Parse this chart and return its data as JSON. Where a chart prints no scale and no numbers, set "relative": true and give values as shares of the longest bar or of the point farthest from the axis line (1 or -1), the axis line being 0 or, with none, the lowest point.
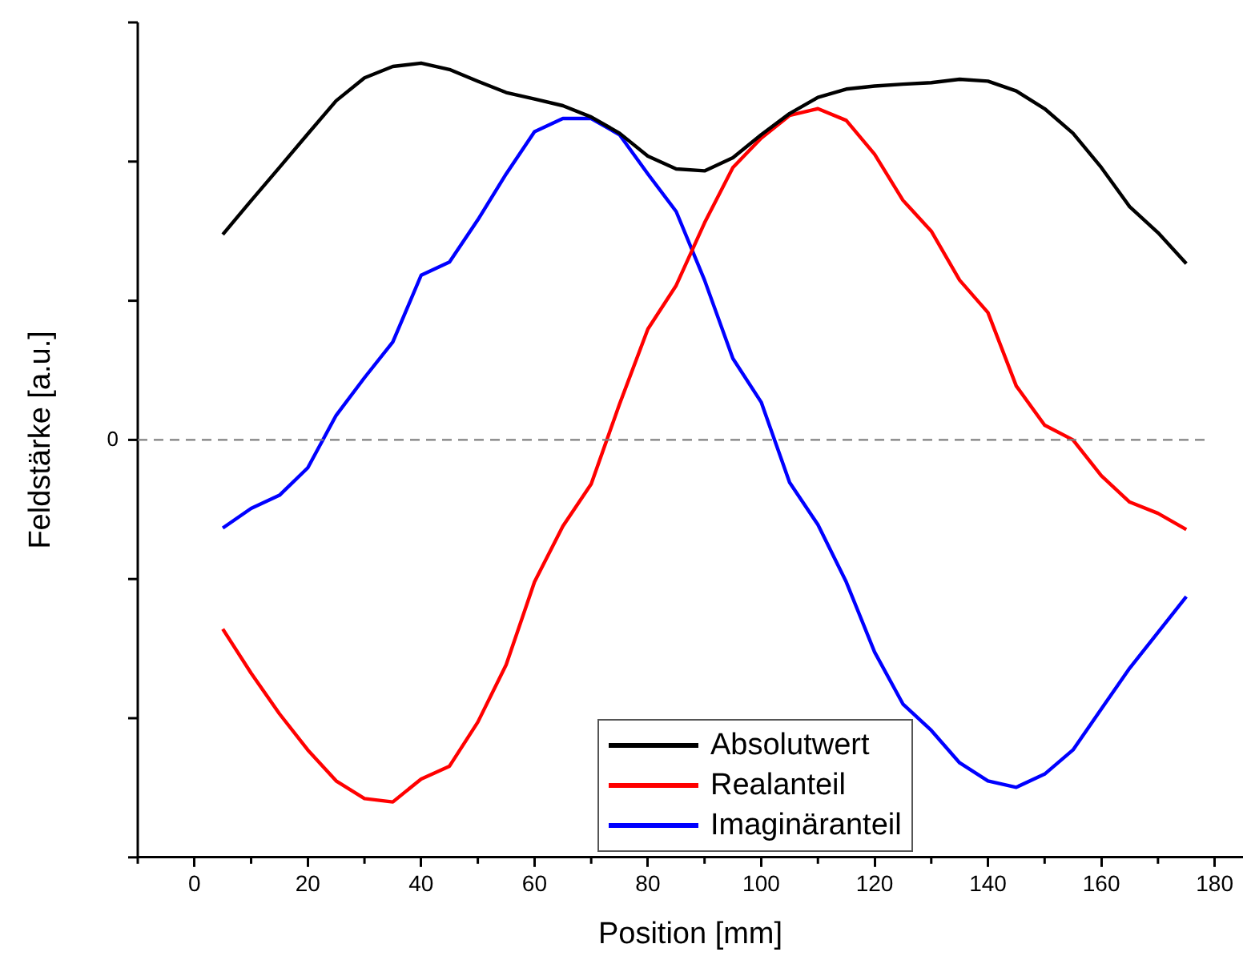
{
  "chart_data": {
    "type": "line",
    "xlabel": "Position [mm]",
    "ylabel": "Feldstärke [a.u.]",
    "relative": true,
    "marker": "none",
    "line_style": "solid",
    "grid": false,
    "legend": "bottom",
    "x": [
      5,
      10,
      15,
      20,
      25,
      30,
      35,
      40,
      45,
      50,
      55,
      60,
      65,
      70,
      75,
      80,
      85,
      90,
      95,
      100,
      105,
      110,
      115,
      120,
      125,
      130,
      135,
      140,
      145,
      150,
      155,
      160,
      165,
      170,
      175
    ],
    "xlim": [
      -10,
      185
    ],
    "xticks": [
      0,
      20,
      40,
      60,
      80,
      100,
      120,
      140,
      160,
      180
    ],
    "ref_lines": [
      {
        "axis": "y",
        "value": 0,
        "label": "0",
        "color": "#808080",
        "line_style": "dashed"
      }
    ],
    "series": [
      {
        "name": "Absolutwert",
        "color": "#000000",
        "values": [
          0.545,
          0.635,
          0.723,
          0.812,
          0.9,
          0.961,
          0.991,
          1,
          0.983,
          0.952,
          0.922,
          0.905,
          0.887,
          0.857,
          0.814,
          0.753,
          0.719,
          0.714,
          0.749,
          0.81,
          0.866,
          0.909,
          0.931,
          0.939,
          0.944,
          0.948,
          0.957,
          0.952,
          0.926,
          0.879,
          0.814,
          0.723,
          0.619,
          0.55,
          0.468
        ]
      },
      {
        "name": "Realanteil",
        "color": "#ff0000",
        "values": [
          -0.502,
          -0.619,
          -0.727,
          -0.823,
          -0.905,
          -0.952,
          -0.961,
          -0.9,
          -0.866,
          -0.749,
          -0.597,
          -0.377,
          -0.229,
          -0.117,
          0.095,
          0.294,
          0.41,
          0.576,
          0.723,
          0.801,
          0.861,
          0.879,
          0.848,
          0.758,
          0.636,
          0.554,
          0.424,
          0.338,
          0.143,
          0.039,
          0,
          -0.095,
          -0.165,
          -0.195,
          -0.238
        ]
      },
      {
        "name": "Imaginäranteil",
        "color": "#0000ff",
        "values": [
          -0.234,
          -0.182,
          -0.147,
          -0.074,
          0.065,
          0.165,
          0.26,
          0.437,
          0.472,
          0.584,
          0.706,
          0.818,
          0.853,
          0.853,
          0.81,
          0.706,
          0.606,
          0.424,
          0.216,
          0.1,
          -0.113,
          -0.225,
          -0.377,
          -0.563,
          -0.701,
          -0.771,
          -0.857,
          -0.905,
          -0.922,
          -0.887,
          -0.823,
          -0.714,
          -0.606,
          -0.511,
          -0.416
        ]
      }
    ]
  }
}
